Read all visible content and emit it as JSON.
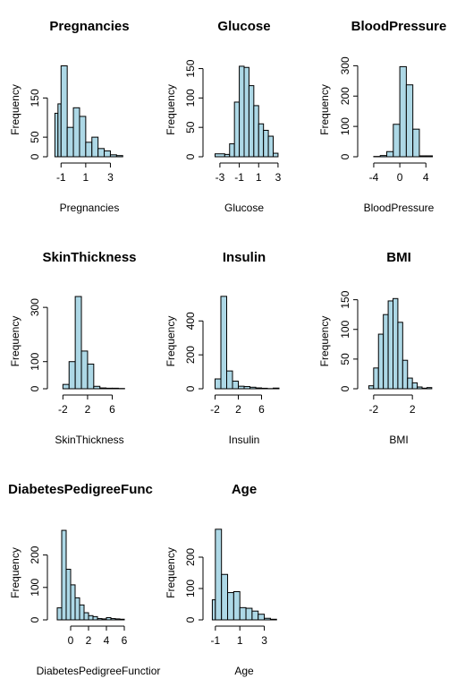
{
  "chart_data": [
    {
      "type": "bar",
      "title": "Pregnancies",
      "xlabel": "Pregnancies",
      "ylabel": "Frequency",
      "bin_edges": [
        -1.5,
        -1.25,
        -1.0,
        -0.5,
        0.0,
        0.5,
        1.0,
        1.5,
        2.0,
        2.5,
        3.0,
        3.5,
        4.0
      ],
      "values": [
        111,
        135,
        232,
        75,
        125,
        103,
        37,
        50,
        21,
        15,
        5,
        3
      ],
      "xlim": [
        -1.6,
        4.2
      ],
      "ylim": [
        0,
        240
      ],
      "xticks": [
        -1,
        1,
        3
      ],
      "yticks": [
        0,
        50,
        150
      ]
    },
    {
      "type": "bar",
      "title": "Glucose",
      "xlabel": "Glucose",
      "ylabel": "Frequency",
      "bin_edges": [
        -3.5,
        -2.5,
        -2.0,
        -1.5,
        -1.0,
        -0.5,
        0.0,
        0.5,
        1.0,
        1.5,
        2.0,
        2.5,
        3.0
      ],
      "values": [
        5,
        4,
        22,
        93,
        154,
        152,
        121,
        87,
        56,
        45,
        35,
        6
      ],
      "xlim": [
        -4.1,
        3.1
      ],
      "ylim": [
        0,
        160
      ],
      "xticks": [
        -3,
        -1,
        1,
        3
      ],
      "yticks": [
        0,
        50,
        100,
        150
      ]
    },
    {
      "type": "bar",
      "title": "BloodPressure",
      "xlabel": "BloodPressure",
      "ylabel": "Frequency",
      "bin_edges": [
        -4.0,
        -3.0,
        -2.0,
        -1.0,
        0.0,
        1.0,
        2.0,
        3.0,
        4.0,
        5.0
      ],
      "values": [
        1,
        4,
        17,
        107,
        297,
        237,
        91,
        3,
        3
      ],
      "xlim": [
        -5.5,
        5.2
      ],
      "ylim": [
        0,
        310
      ],
      "xticks": [
        -4,
        0,
        4
      ],
      "yticks": [
        0,
        100,
        200,
        300
      ]
    },
    {
      "type": "bar",
      "title": "SkinThickness",
      "xlabel": "SkinThickness",
      "ylabel": "Frequency",
      "bin_edges": [
        -2.0,
        -1.0,
        0.0,
        1.0,
        2.0,
        3.0,
        4.0,
        5.0,
        6.0,
        7.0,
        8.0
      ],
      "values": [
        16,
        100,
        340,
        139,
        91,
        9,
        3,
        2,
        2,
        1
      ],
      "xlim": [
        -3.5,
        8.1
      ],
      "ylim": [
        0,
        350
      ],
      "xticks": [
        -2,
        2,
        6
      ],
      "yticks": [
        0,
        100,
        300
      ]
    },
    {
      "type": "bar",
      "title": "Insulin",
      "xlabel": "Insulin",
      "ylabel": "Frequency",
      "bin_edges": [
        -2.0,
        -1.0,
        0.0,
        1.0,
        2.0,
        3.0,
        4.0,
        5.0,
        6.0,
        7.0,
        8.0,
        9.0
      ],
      "values": [
        58,
        545,
        105,
        45,
        15,
        13,
        9,
        5,
        3,
        1,
        4
      ],
      "xlim": [
        -3.0,
        9.0
      ],
      "ylim": [
        0,
        560
      ],
      "xticks": [
        -2,
        2,
        6
      ],
      "yticks": [
        0,
        200,
        400
      ]
    },
    {
      "type": "bar",
      "title": "BMI",
      "xlabel": "BMI",
      "ylabel": "Frequency",
      "bin_edges": [
        -2.5,
        -2.0,
        -1.5,
        -1.0,
        -0.5,
        0.0,
        0.5,
        1.0,
        1.5,
        2.0,
        2.5,
        3.0,
        3.5,
        4.0
      ],
      "values": [
        5,
        35,
        92,
        125,
        148,
        152,
        112,
        48,
        18,
        10,
        3,
        1,
        2
      ],
      "xlim": [
        -3.0,
        4.2
      ],
      "ylim": [
        0,
        160
      ],
      "xticks": [
        -2,
        2
      ],
      "yticks": [
        0,
        50,
        100,
        150
      ]
    },
    {
      "type": "bar",
      "title": "DiabetesPedigreeFunc",
      "xlabel": "DiabetesPedigreeFunctior",
      "ylabel": "Frequency",
      "bin_edges": [
        -1.5,
        -1.0,
        -0.5,
        0.0,
        0.5,
        1.0,
        1.5,
        2.0,
        2.5,
        3.0,
        3.5,
        4.0,
        4.5,
        5.0,
        5.5,
        6.0
      ],
      "values": [
        37,
        276,
        156,
        108,
        68,
        46,
        22,
        13,
        10,
        4,
        3,
        7,
        4,
        3,
        2
      ],
      "xlim": [
        -1.9,
        6.1
      ],
      "ylim": [
        0,
        290
      ],
      "xticks": [
        0,
        2,
        4,
        6
      ],
      "yticks": [
        0,
        100,
        200
      ]
    },
    {
      "type": "bar",
      "title": "Age",
      "xlabel": "Age",
      "ylabel": "Frequency",
      "bin_edges": [
        -1.25,
        -1.0,
        -0.5,
        0.0,
        0.5,
        1.0,
        1.5,
        2.0,
        2.5,
        3.0,
        3.5,
        4.0
      ],
      "values": [
        64,
        289,
        145,
        87,
        90,
        39,
        37,
        28,
        18,
        5,
        2
      ],
      "xlim": [
        -1.5,
        4.2
      ],
      "ylim": [
        0,
        300
      ],
      "xticks": [
        -1,
        1,
        3
      ],
      "yticks": [
        0,
        100,
        200
      ]
    }
  ]
}
